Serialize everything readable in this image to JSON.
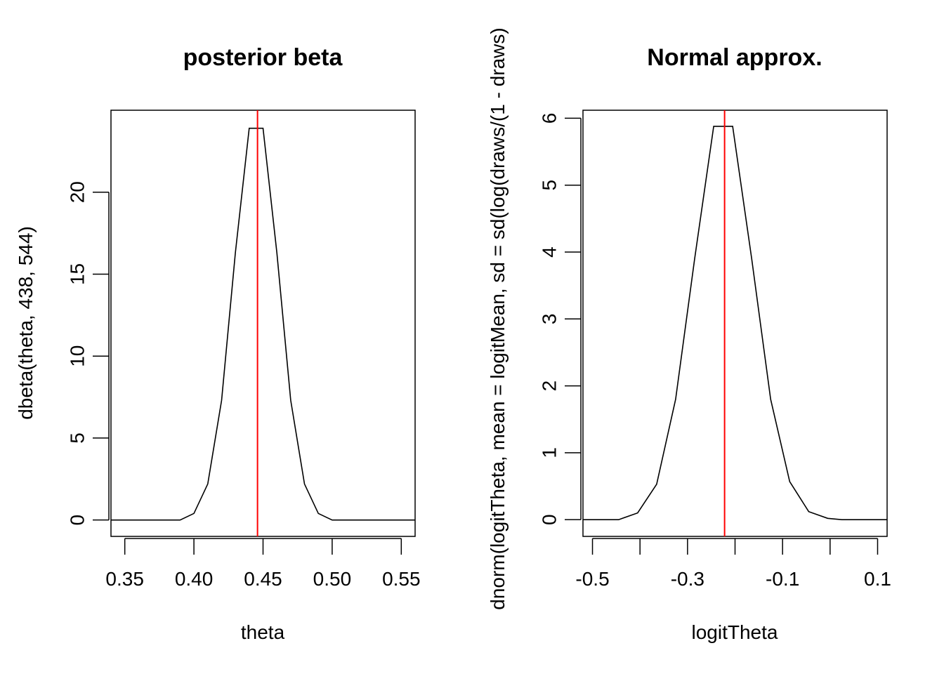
{
  "chart_data": [
    {
      "type": "line",
      "title": "posterior beta",
      "xlabel": "theta",
      "ylabel": "dbeta(theta, 438, 544)",
      "xlim": [
        0.34,
        0.56
      ],
      "ylim": [
        -1,
        25
      ],
      "xticks": [
        0.35,
        0.4,
        0.45,
        0.5,
        0.55
      ],
      "xtick_labels": [
        "0.35",
        "0.40",
        "0.45",
        "0.50",
        "0.55"
      ],
      "yticks": [
        0,
        5,
        10,
        15,
        20
      ],
      "ytick_labels": [
        "0",
        "5",
        "10",
        "15",
        "20"
      ],
      "series": [
        {
          "x": [
            0.33,
            0.39,
            0.4,
            0.41,
            0.42,
            0.43,
            0.44,
            0.45,
            0.46,
            0.47,
            0.48,
            0.49,
            0.5,
            0.57
          ],
          "y": [
            0,
            0,
            0.4,
            2.2,
            7.3,
            16.3,
            23.9,
            23.9,
            16.3,
            7.3,
            2.2,
            0.4,
            0,
            0
          ]
        }
      ],
      "vline": {
        "x": 0.446,
        "color": "#ff0000"
      },
      "grid": false
    },
    {
      "type": "line",
      "title": "Normal approx.",
      "xlabel": "logitTheta",
      "ylabel": "dnorm(logitTheta, mean = logitMean, sd = sd(log(draws/(1 - draws)",
      "xlim": [
        -0.52,
        0.12
      ],
      "ylim": [
        -0.25,
        6.12
      ],
      "xticks": [
        -0.5,
        -0.4,
        -0.3,
        -0.2,
        -0.1,
        0.0,
        0.1
      ],
      "xtick_labels": [
        "-0.5",
        "",
        "-0.3",
        "",
        "-0.1",
        "",
        "0.1"
      ],
      "yticks": [
        0,
        1,
        2,
        3,
        4,
        5,
        6
      ],
      "ytick_labels": [
        "0",
        "1",
        "2",
        "3",
        "4",
        "5",
        "6"
      ],
      "series": [
        {
          "x": [
            -0.55,
            -0.445,
            -0.405,
            -0.365,
            -0.325,
            -0.285,
            -0.245,
            -0.205,
            -0.165,
            -0.125,
            -0.085,
            -0.045,
            -0.005,
            0.025,
            0.13
          ],
          "y": [
            0,
            0,
            0.1,
            0.53,
            1.8,
            3.9,
            5.88,
            5.88,
            3.9,
            1.8,
            0.57,
            0.12,
            0.02,
            0,
            0
          ]
        }
      ],
      "vline": {
        "x": -0.222,
        "color": "#ff0000"
      },
      "grid": false
    }
  ]
}
